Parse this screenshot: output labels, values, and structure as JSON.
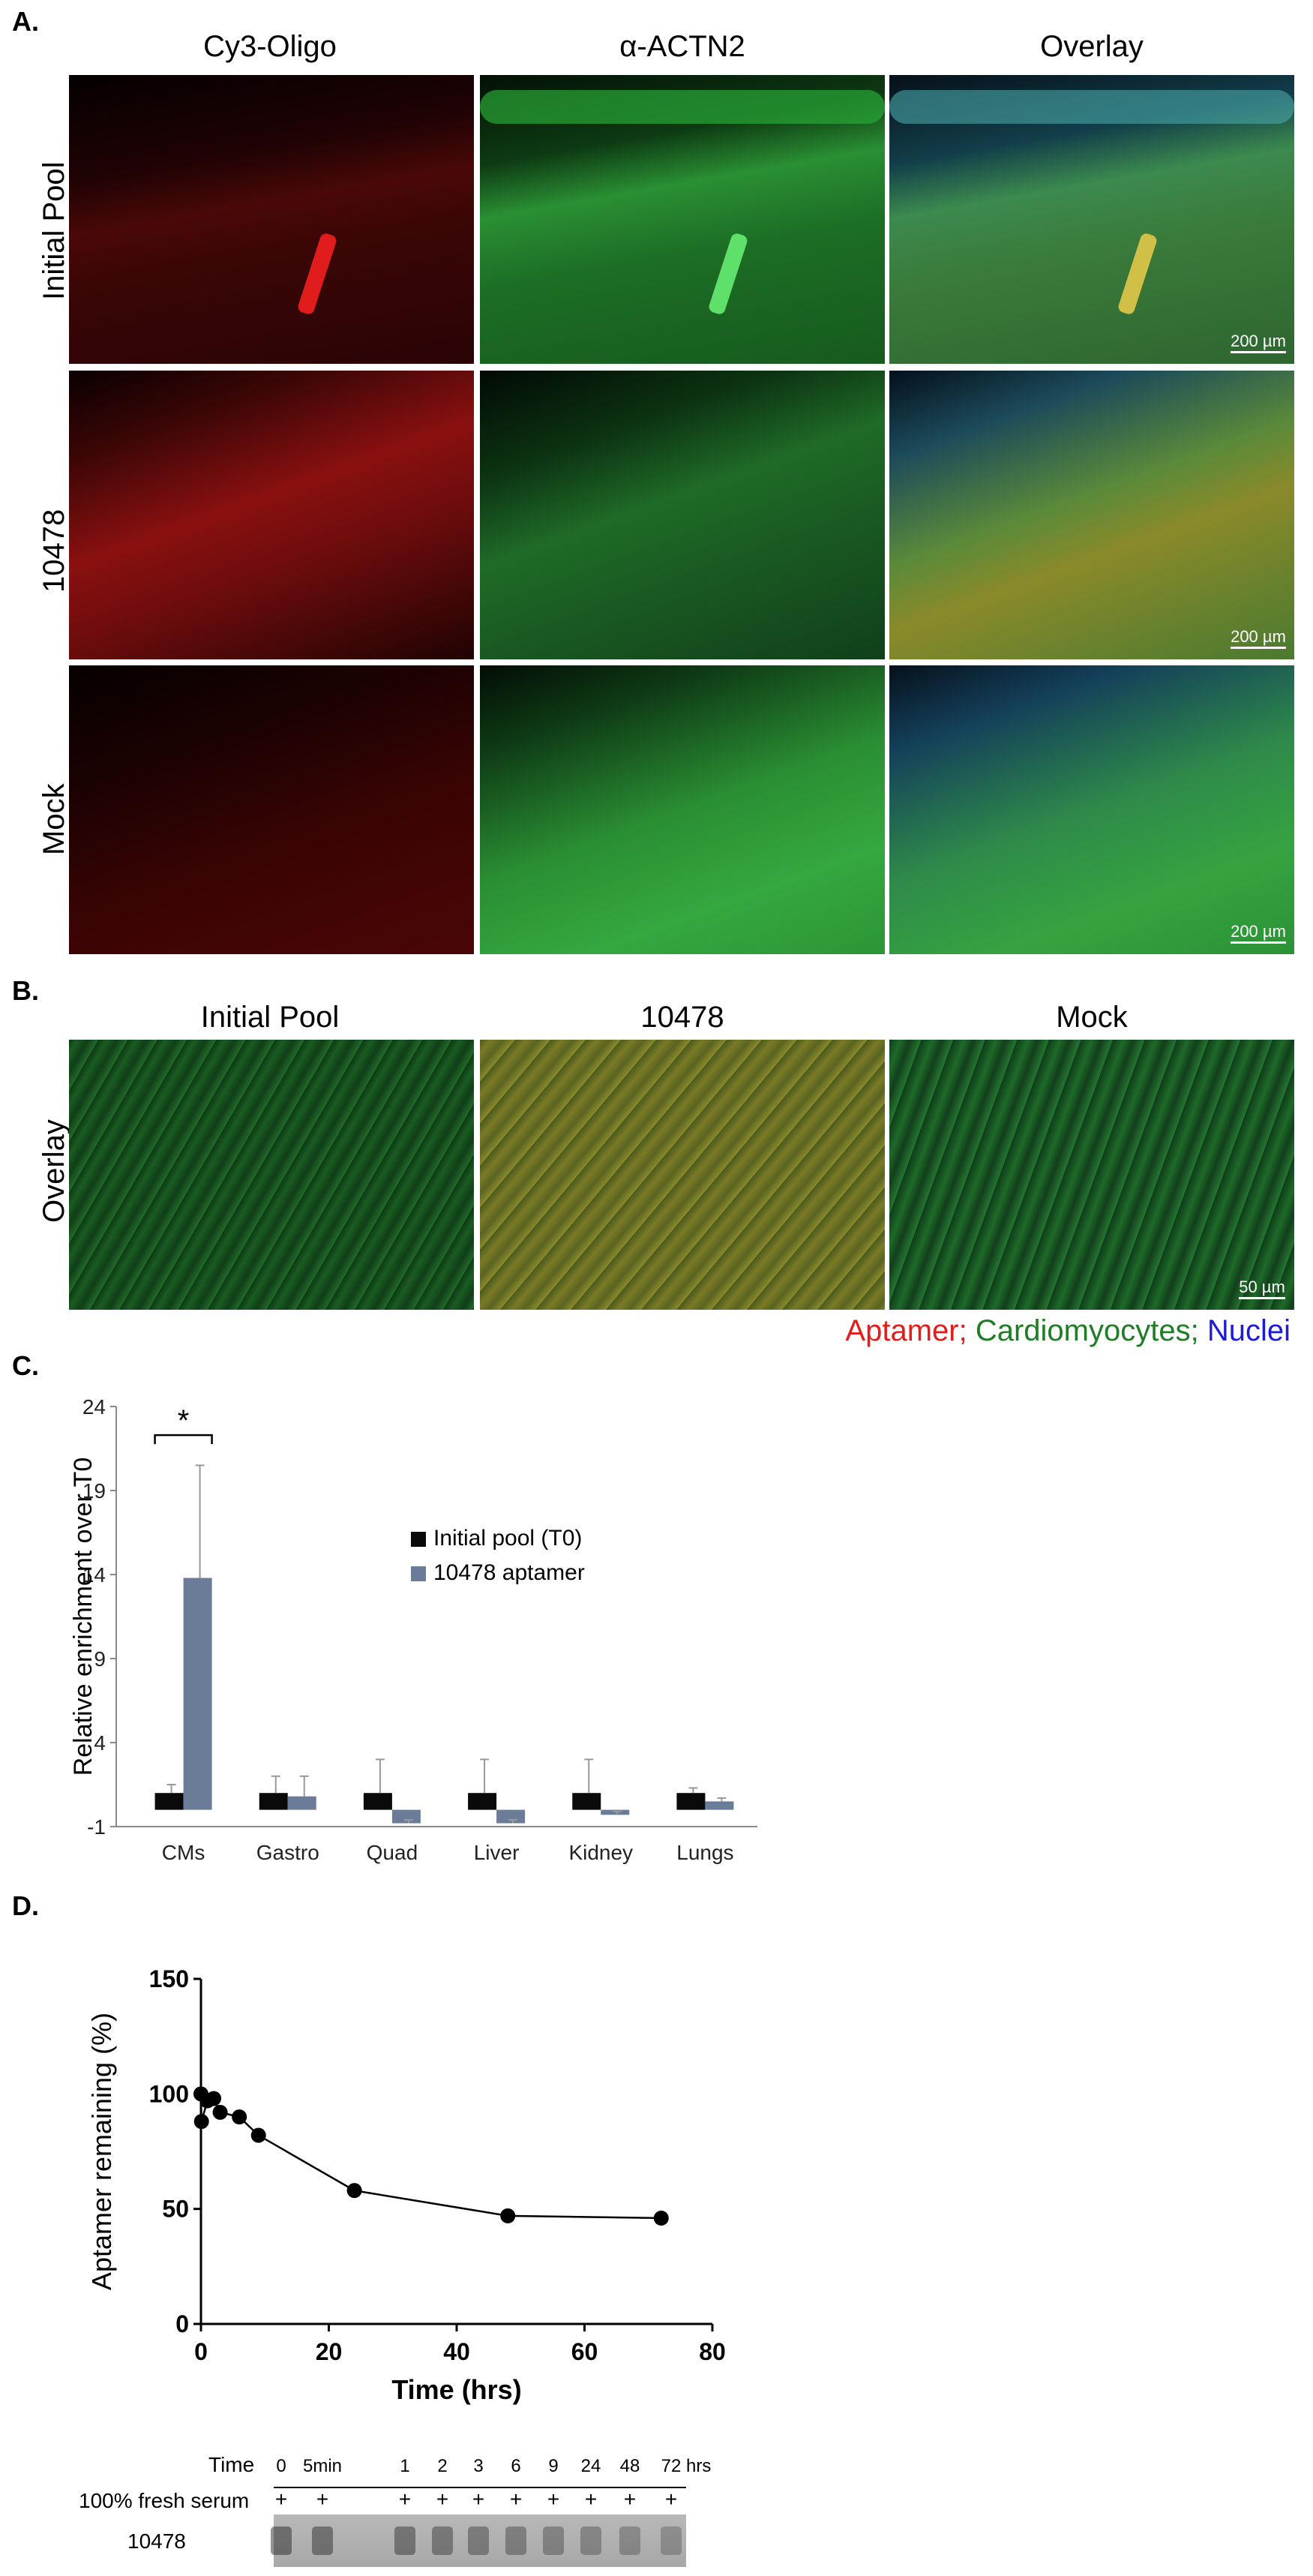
{
  "panel_a": {
    "letter": "A.",
    "columns": [
      "Cy3-Oligo",
      "α-ACTN2",
      "Overlay"
    ],
    "rows": [
      "Initial Pool",
      "10478",
      "Mock"
    ],
    "scale_bar": "200 µm",
    "colors": {
      "red": "#d01818",
      "green": "#2ea83a",
      "blue": "#2a6fd6",
      "yellow": "#c8b43a"
    }
  },
  "panel_b": {
    "letter": "B.",
    "columns": [
      "Initial Pool",
      "10478",
      "Mock"
    ],
    "row": "Overlay",
    "scale_bar": "50 µm",
    "legend": {
      "aptamer": "Aptamer;",
      "cardiomyocytes": "Cardiomyocytes;",
      "nuclei": "Nuclei"
    },
    "legend_colors": {
      "aptamer": "#e41c1c",
      "cardiomyocytes": "#1e7d25",
      "nuclei": "#1c1cd6"
    }
  },
  "panel_c": {
    "letter": "C.",
    "significance": "*",
    "chart_data": {
      "type": "bar",
      "categories": [
        "CMs",
        "Gastro",
        "Quad",
        "Liver",
        "Kidney",
        "Lungs"
      ],
      "series": [
        {
          "name": "Initial pool (T0)",
          "color": "#0a0a0a",
          "values": [
            1.0,
            1.0,
            1.0,
            1.0,
            1.0,
            1.0
          ],
          "errors": [
            0.5,
            1.0,
            2.0,
            2.0,
            2.0,
            0.3
          ]
        },
        {
          "name": "10478 aptamer",
          "color": "#6b7c99",
          "values": [
            13.8,
            0.8,
            -0.8,
            -0.8,
            -0.3,
            0.5
          ],
          "errors": [
            6.7,
            1.2,
            0.2,
            0.2,
            0.2,
            0.2
          ]
        }
      ],
      "ylabel": "Relative enrichment over T0",
      "yticks": [
        -1,
        4,
        9,
        14,
        19,
        24
      ],
      "ylim": [
        -1,
        24
      ]
    }
  },
  "panel_d": {
    "letter": "D.",
    "chart_data": {
      "type": "line",
      "x": [
        0,
        0.083,
        1,
        2,
        3,
        6,
        9,
        24,
        48,
        72
      ],
      "y": [
        100,
        88,
        97,
        98,
        92,
        90,
        82,
        58,
        47,
        46
      ],
      "xlabel": "Time (hrs)",
      "ylabel": "Aptamer remaining (%)",
      "xticks": [
        0,
        20,
        40,
        60,
        80
      ],
      "yticks": [
        0,
        50,
        100,
        150
      ],
      "xlim": [
        0,
        80
      ],
      "ylim": [
        0,
        150
      ]
    },
    "gel": {
      "time_label": "Time",
      "times": [
        "0",
        "5min",
        "1",
        "2",
        "3",
        "6",
        "9",
        "24",
        "48",
        "72"
      ],
      "time_unit": "hrs",
      "serum_label": "100% fresh serum",
      "plus": "+",
      "sample_label": "10478"
    }
  }
}
